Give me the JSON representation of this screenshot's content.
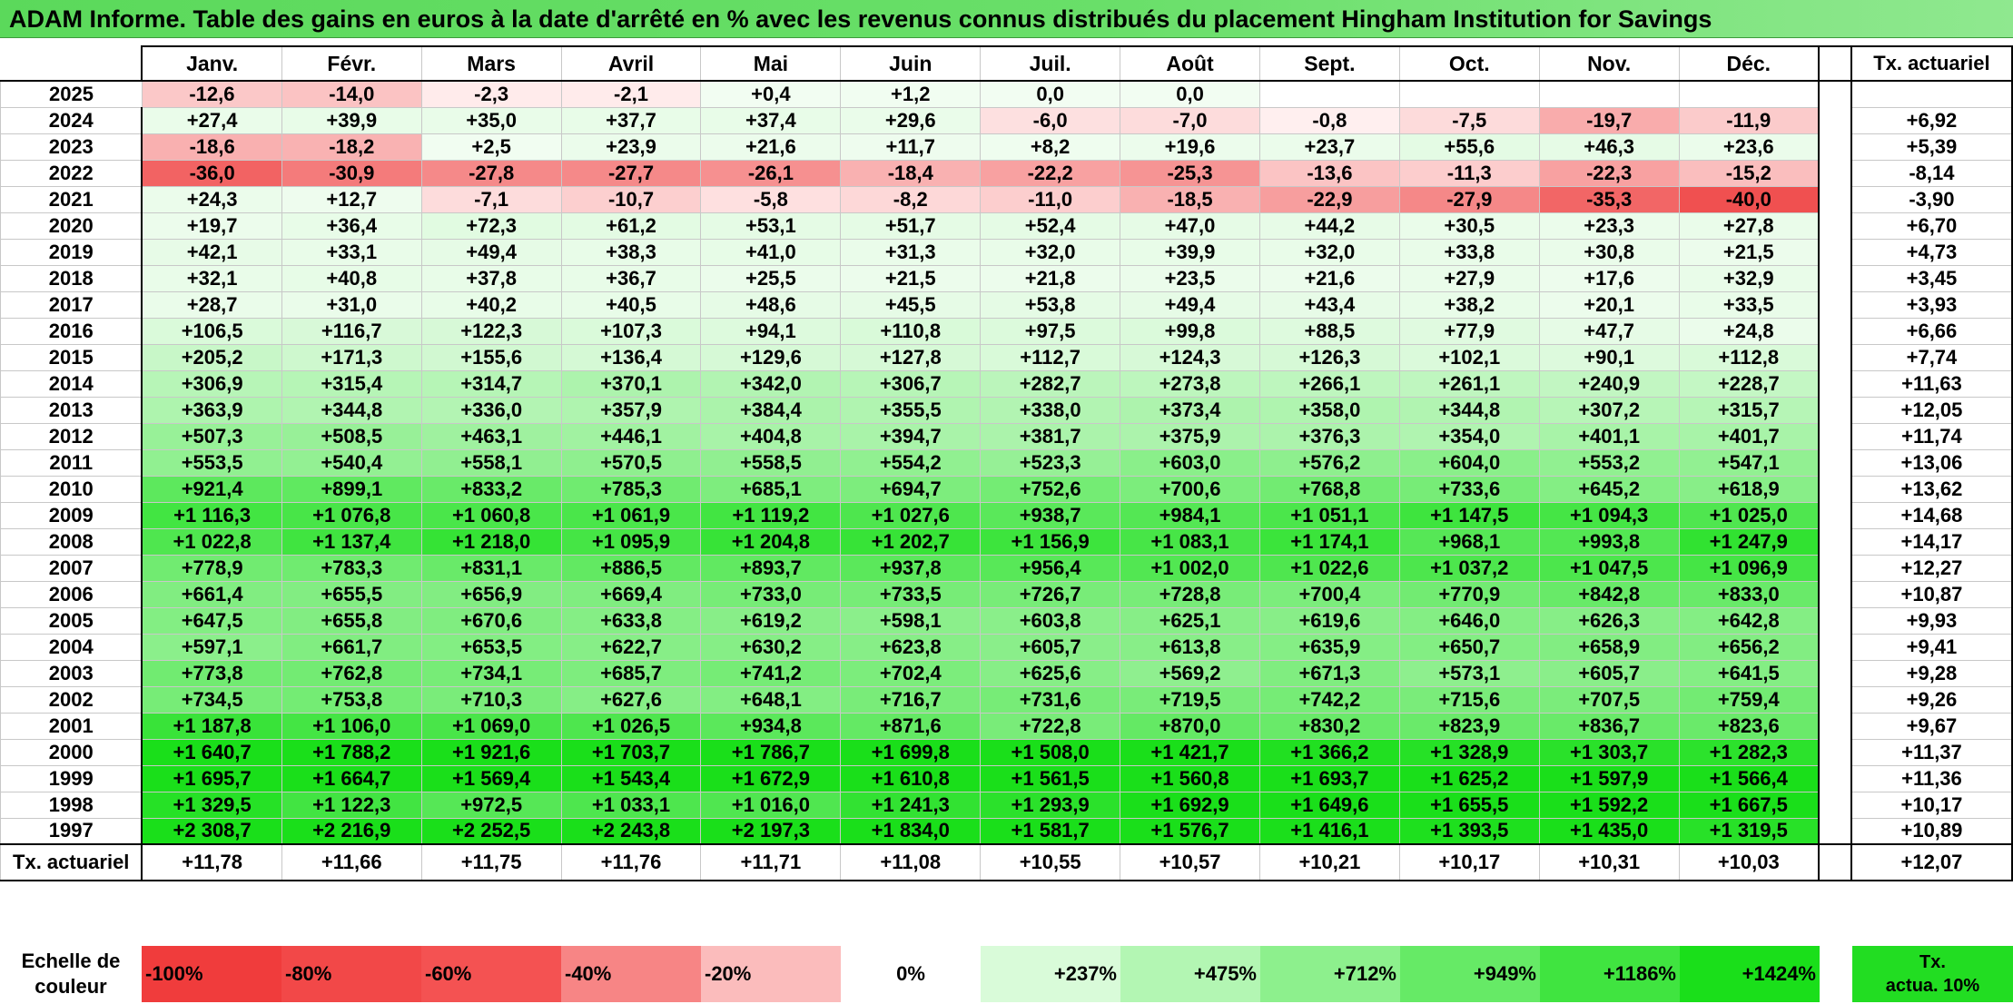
{
  "title": "ADAM Informe. Table des gains en euros à la date d'arrêté en % avec les revenus connus distribués du placement Hingham Institution for Savings",
  "chart_data": {
    "type": "table",
    "months": [
      "Janv.",
      "Févr.",
      "Mars",
      "Avril",
      "Mai",
      "Juin",
      "Juil.",
      "Août",
      "Sept.",
      "Oct.",
      "Nov.",
      "Déc."
    ],
    "rate_header": "Tx. actuariel",
    "rows": [
      {
        "year": "2025",
        "values": [
          -12.6,
          -14.0,
          -2.3,
          -2.1,
          0.4,
          1.2,
          0.0,
          0.0,
          null,
          null,
          null,
          null
        ],
        "rate": ""
      },
      {
        "year": "2024",
        "values": [
          27.4,
          39.9,
          35.0,
          37.7,
          37.4,
          29.6,
          -6.0,
          -7.0,
          -0.8,
          -7.5,
          -19.7,
          -11.9
        ],
        "rate": "+6,92"
      },
      {
        "year": "2023",
        "values": [
          -18.6,
          -18.2,
          2.5,
          23.9,
          21.6,
          11.7,
          8.2,
          19.6,
          23.7,
          55.6,
          46.3,
          23.6
        ],
        "rate": "+5,39"
      },
      {
        "year": "2022",
        "values": [
          -36.0,
          -30.9,
          -27.8,
          -27.7,
          -26.1,
          -18.4,
          -22.2,
          -25.3,
          -13.6,
          -11.3,
          -22.3,
          -15.2
        ],
        "rate": "-8,14"
      },
      {
        "year": "2021",
        "values": [
          24.3,
          12.7,
          -7.1,
          -10.7,
          -5.8,
          -8.2,
          -11.0,
          -18.5,
          -22.9,
          -27.9,
          -35.3,
          -40.0
        ],
        "rate": "-3,90"
      },
      {
        "year": "2020",
        "values": [
          19.7,
          36.4,
          72.3,
          61.2,
          53.1,
          51.7,
          52.4,
          47.0,
          44.2,
          30.5,
          23.3,
          27.8
        ],
        "rate": "+6,70"
      },
      {
        "year": "2019",
        "values": [
          42.1,
          33.1,
          49.4,
          38.3,
          41.0,
          31.3,
          32.0,
          39.9,
          32.0,
          33.8,
          30.8,
          21.5
        ],
        "rate": "+4,73"
      },
      {
        "year": "2018",
        "values": [
          32.1,
          40.8,
          37.8,
          36.7,
          25.5,
          21.5,
          21.8,
          23.5,
          21.6,
          27.9,
          17.6,
          32.9
        ],
        "rate": "+3,45"
      },
      {
        "year": "2017",
        "values": [
          28.7,
          31.0,
          40.2,
          40.5,
          48.6,
          45.5,
          53.8,
          49.4,
          43.4,
          38.2,
          20.1,
          33.5
        ],
        "rate": "+3,93"
      },
      {
        "year": "2016",
        "values": [
          106.5,
          116.7,
          122.3,
          107.3,
          94.1,
          110.8,
          97.5,
          99.8,
          88.5,
          77.9,
          47.7,
          24.8
        ],
        "rate": "+6,66"
      },
      {
        "year": "2015",
        "values": [
          205.2,
          171.3,
          155.6,
          136.4,
          129.6,
          127.8,
          112.7,
          124.3,
          126.3,
          102.1,
          90.1,
          112.8
        ],
        "rate": "+7,74"
      },
      {
        "year": "2014",
        "values": [
          306.9,
          315.4,
          314.7,
          370.1,
          342.0,
          306.7,
          282.7,
          273.8,
          266.1,
          261.1,
          240.9,
          228.7
        ],
        "rate": "+11,63"
      },
      {
        "year": "2013",
        "values": [
          363.9,
          344.8,
          336.0,
          357.9,
          384.4,
          355.5,
          338.0,
          373.4,
          358.0,
          344.8,
          307.2,
          315.7
        ],
        "rate": "+12,05"
      },
      {
        "year": "2012",
        "values": [
          507.3,
          508.5,
          463.1,
          446.1,
          404.8,
          394.7,
          381.7,
          375.9,
          376.3,
          354.0,
          401.1,
          401.7
        ],
        "rate": "+11,74"
      },
      {
        "year": "2011",
        "values": [
          553.5,
          540.4,
          558.1,
          570.5,
          558.5,
          554.2,
          523.3,
          603.0,
          576.2,
          604.0,
          553.2,
          547.1
        ],
        "rate": "+13,06"
      },
      {
        "year": "2010",
        "values": [
          921.4,
          899.1,
          833.2,
          785.3,
          685.1,
          694.7,
          752.6,
          700.6,
          768.8,
          733.6,
          645.2,
          618.9
        ],
        "rate": "+13,62"
      },
      {
        "year": "2009",
        "values": [
          1116.3,
          1076.8,
          1060.8,
          1061.9,
          1119.2,
          1027.6,
          938.7,
          984.1,
          1051.1,
          1147.5,
          1094.3,
          1025.0
        ],
        "rate": "+14,68"
      },
      {
        "year": "2008",
        "values": [
          1022.8,
          1137.4,
          1218.0,
          1095.9,
          1204.8,
          1202.7,
          1156.9,
          1083.1,
          1174.1,
          968.1,
          993.8,
          1247.9
        ],
        "rate": "+14,17"
      },
      {
        "year": "2007",
        "values": [
          778.9,
          783.3,
          831.1,
          886.5,
          893.7,
          937.8,
          956.4,
          1002.0,
          1022.6,
          1037.2,
          1047.5,
          1096.9
        ],
        "rate": "+12,27"
      },
      {
        "year": "2006",
        "values": [
          661.4,
          655.5,
          656.9,
          669.4,
          733.0,
          733.5,
          726.7,
          728.8,
          700.4,
          770.9,
          842.8,
          833.0
        ],
        "rate": "+10,87"
      },
      {
        "year": "2005",
        "values": [
          647.5,
          655.8,
          670.6,
          633.8,
          619.2,
          598.1,
          603.8,
          625.1,
          619.6,
          646.0,
          626.3,
          642.8
        ],
        "rate": "+9,93"
      },
      {
        "year": "2004",
        "values": [
          597.1,
          661.7,
          653.5,
          622.7,
          630.2,
          623.8,
          605.7,
          613.8,
          635.9,
          650.7,
          658.9,
          656.2
        ],
        "rate": "+9,41"
      },
      {
        "year": "2003",
        "values": [
          773.8,
          762.8,
          734.1,
          685.7,
          741.2,
          702.4,
          625.6,
          569.2,
          671.3,
          573.1,
          605.7,
          641.5
        ],
        "rate": "+9,28"
      },
      {
        "year": "2002",
        "values": [
          734.5,
          753.8,
          710.3,
          627.6,
          648.1,
          716.7,
          731.6,
          719.5,
          742.2,
          715.6,
          707.5,
          759.4
        ],
        "rate": "+9,26"
      },
      {
        "year": "2001",
        "values": [
          1187.8,
          1106.0,
          1069.0,
          1026.5,
          934.8,
          871.6,
          722.8,
          870.0,
          830.2,
          823.9,
          836.7,
          823.6
        ],
        "rate": "+9,67"
      },
      {
        "year": "2000",
        "values": [
          1640.7,
          1788.2,
          1921.6,
          1703.7,
          1786.7,
          1699.8,
          1508.0,
          1421.7,
          1366.2,
          1328.9,
          1303.7,
          1282.3
        ],
        "rate": "+11,37"
      },
      {
        "year": "1999",
        "values": [
          1695.7,
          1664.7,
          1569.4,
          1543.4,
          1672.9,
          1610.8,
          1561.5,
          1560.8,
          1693.7,
          1625.2,
          1597.9,
          1566.4
        ],
        "rate": "+11,36"
      },
      {
        "year": "1998",
        "values": [
          1329.5,
          1122.3,
          972.5,
          1033.1,
          1016.0,
          1241.3,
          1293.9,
          1692.9,
          1649.6,
          1655.5,
          1592.2,
          1667.5
        ],
        "rate": "+10,17"
      },
      {
        "year": "1997",
        "values": [
          2308.7,
          2216.9,
          2252.5,
          2243.8,
          2197.3,
          1834.0,
          1581.7,
          1576.7,
          1416.1,
          1393.5,
          1435.0,
          1319.5
        ],
        "rate": "+10,89"
      }
    ],
    "footer_label": "Tx. actuariel",
    "footer_values": [
      "+11,78",
      "+11,66",
      "+11,75",
      "+11,76",
      "+11,71",
      "+11,08",
      "+10,55",
      "+10,57",
      "+10,21",
      "+10,17",
      "+10,31",
      "+10,03"
    ],
    "footer_rate": "+12,07"
  },
  "legend": {
    "label_line1": "Echelle de",
    "label_line2": "couleur",
    "steps": [
      {
        "text": "-100%",
        "color": "#f03c3c"
      },
      {
        "text": "-80%",
        "color": "#f24848"
      },
      {
        "text": "-60%",
        "color": "#f45252"
      },
      {
        "text": "-40%",
        "color": "#f78585"
      },
      {
        "text": "-20%",
        "color": "#fbbcbc"
      },
      {
        "text": "0%",
        "color": "#ffffff"
      },
      {
        "text": "+237%",
        "color": "#d9fbd9"
      },
      {
        "text": "+475%",
        "color": "#b3f6b3"
      },
      {
        "text": "+712%",
        "color": "#8df08d"
      },
      {
        "text": "+949%",
        "color": "#66ea66"
      },
      {
        "text": "+1186%",
        "color": "#40e440"
      },
      {
        "text": "+1424%",
        "color": "#1adf1a"
      }
    ],
    "rate_line1": "Tx.",
    "rate_line2": "actua. 10%",
    "rate_color": "#22dd22"
  }
}
